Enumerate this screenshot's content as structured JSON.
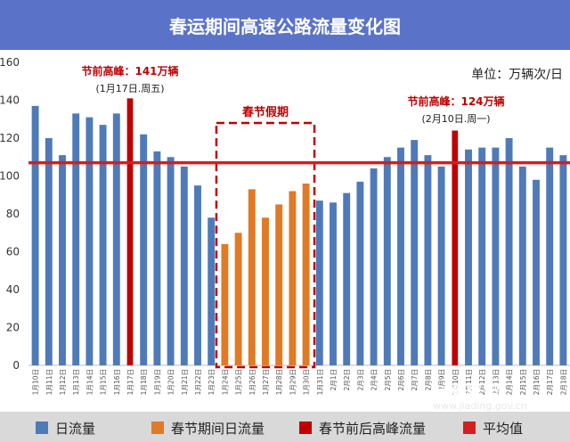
{
  "title": "春运期间高速公路流量变化图",
  "colors": {
    "daily": "#4f7ab8",
    "holiday": "#e07a24",
    "peak": "#c00000",
    "average": "#d21f1f",
    "title_bg": "#5a73c9",
    "annotation": "#c00000"
  },
  "legend": {
    "items": [
      {
        "label": "日流量",
        "color": "#4f7ab8",
        "kind": "box"
      },
      {
        "label": "春节期间日流量",
        "color": "#e07a24",
        "kind": "box"
      },
      {
        "label": "春节前后高峰流量",
        "color": "#c00000",
        "kind": "box"
      },
      {
        "label": "平均值",
        "color": "#d21f1f",
        "kind": "line"
      }
    ]
  },
  "watermark": {
    "text": "上海嘉定",
    "url": "www.jiading.gov.cn"
  },
  "chart_data": {
    "type": "bar",
    "title": "春运期间高速公路流量变化图",
    "unit_label": "单位：万辆次/日",
    "xlabel": "",
    "ylabel": "",
    "ylim": [
      0,
      160
    ],
    "yticks": [
      0,
      20,
      40,
      60,
      80,
      100,
      120,
      140,
      160
    ],
    "grid": false,
    "average": 107,
    "categories": [
      "1月10日",
      "1月11日",
      "1月12日",
      "1月13日",
      "1月14日",
      "1月15日",
      "1月16日",
      "1月17日",
      "1月18日",
      "1月19日",
      "1月20日",
      "1月21日",
      "1月22日",
      "1月23日",
      "1月24日",
      "1月25日",
      "1月26日",
      "1月27日",
      "1月28日",
      "1月29日",
      "1月30日",
      "1月31日",
      "2月1日",
      "2月2日",
      "2月3日",
      "2月4日",
      "2月5日",
      "2月6日",
      "2月7日",
      "2月8日",
      "2月9日",
      "2月10日",
      "2月11日",
      "2月12日",
      "2月13日",
      "2月14日",
      "2月15日",
      "2月16日",
      "2月17日",
      "2月18日"
    ],
    "values": [
      137,
      120,
      111,
      133,
      131,
      127,
      133,
      141,
      122,
      113,
      110,
      105,
      95,
      78,
      64,
      70,
      93,
      78,
      85,
      92,
      96,
      87,
      86,
      91,
      97,
      104,
      110,
      115,
      119,
      111,
      105,
      124,
      114,
      115,
      115,
      120,
      105,
      98,
      115,
      111
    ],
    "kinds": [
      "daily",
      "daily",
      "daily",
      "daily",
      "daily",
      "daily",
      "daily",
      "peak",
      "daily",
      "daily",
      "daily",
      "daily",
      "daily",
      "daily",
      "holiday",
      "holiday",
      "holiday",
      "holiday",
      "holiday",
      "holiday",
      "holiday",
      "daily",
      "daily",
      "daily",
      "daily",
      "daily",
      "daily",
      "daily",
      "daily",
      "daily",
      "daily",
      "peak",
      "daily",
      "daily",
      "daily",
      "daily",
      "daily",
      "daily",
      "daily",
      "daily"
    ],
    "annotations": [
      {
        "text": "节前高峰：141万辆",
        "sub": "(1月17日.周五)",
        "index": 7
      },
      {
        "text": "节前高峰：124万辆",
        "sub": "(2月10日.周一)",
        "index": 31
      }
    ],
    "holiday_box": {
      "label": "春节假期",
      "start": 14,
      "end": 20
    }
  }
}
